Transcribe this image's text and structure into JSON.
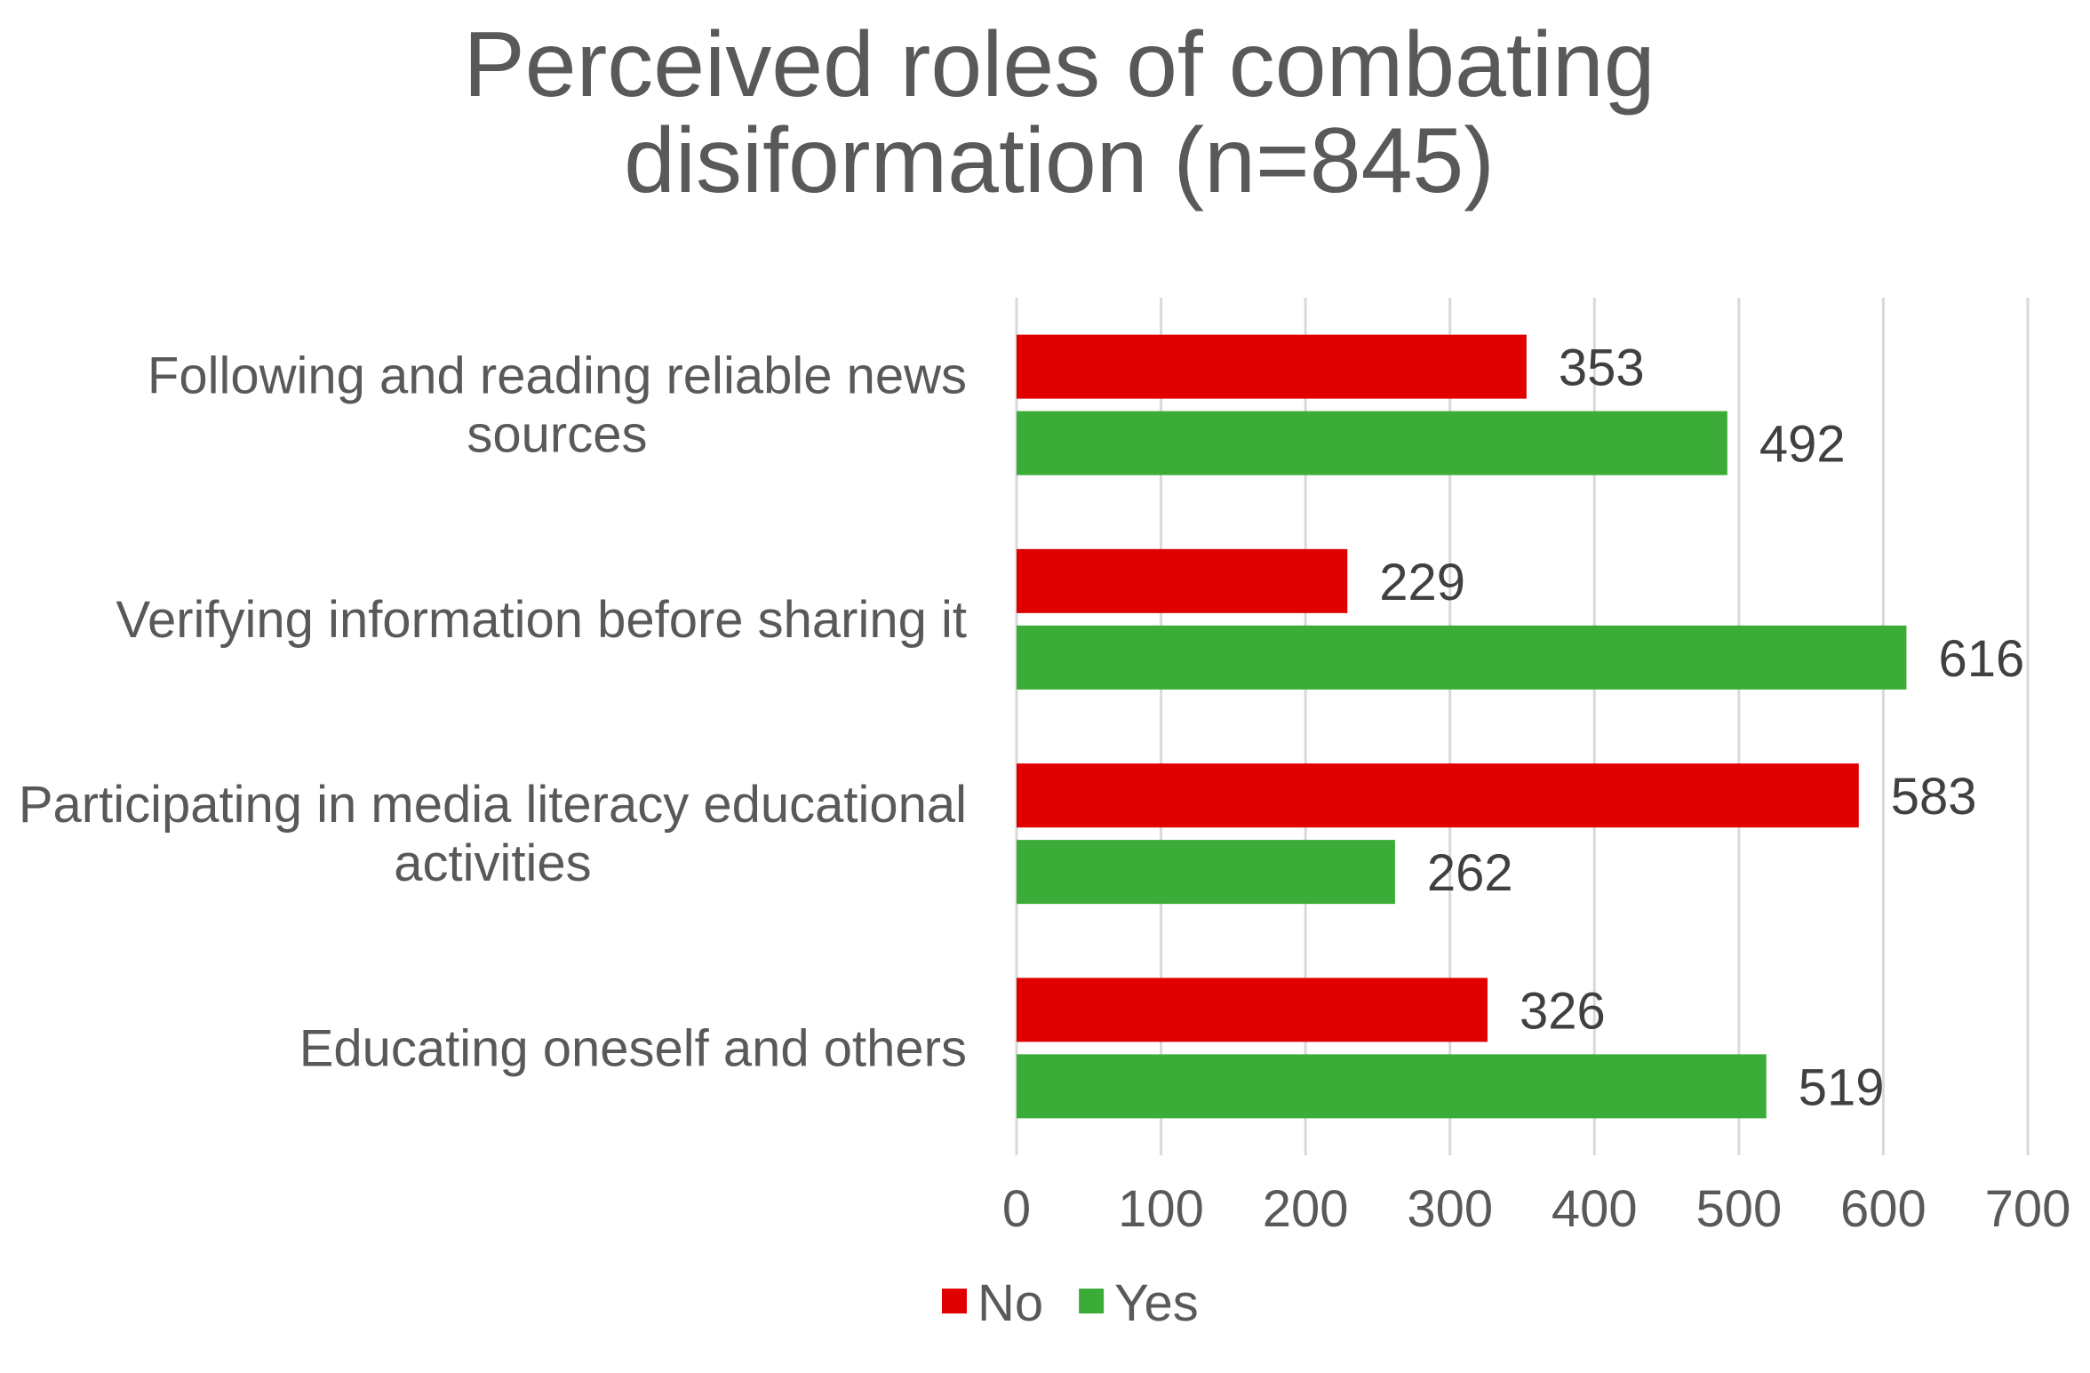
{
  "chart_data": {
    "type": "bar",
    "orientation": "horizontal",
    "title_lines": [
      "Perceived roles of combating",
      "disiformation (n=845)"
    ],
    "categories": [
      [
        "Following and reading reliable news",
        "sources"
      ],
      [
        "Verifying information before sharing it"
      ],
      [
        "Participating in media literacy educational",
        "activities"
      ],
      [
        "Educating oneself and others"
      ]
    ],
    "series": [
      {
        "name": "No",
        "color": "#e00000",
        "values": [
          353,
          229,
          583,
          326
        ]
      },
      {
        "name": "Yes",
        "color": "#3aac37",
        "values": [
          492,
          616,
          262,
          519
        ]
      }
    ],
    "xlim": [
      0,
      700
    ],
    "xticks": [
      "0",
      "100",
      "200",
      "300",
      "400",
      "500",
      "600",
      "700"
    ],
    "grid": "vertical",
    "legend_position": "bottom",
    "data_labels": true
  }
}
